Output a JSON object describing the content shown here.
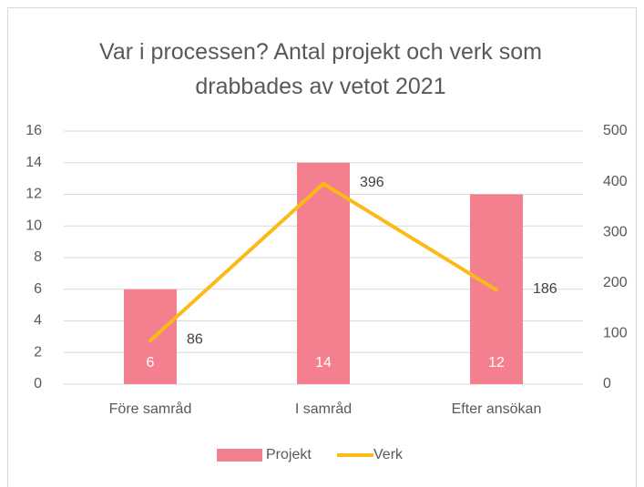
{
  "chart_data": {
    "type": "combo",
    "title": "Var i processen? Antal projekt och verk som drabbades av vetot 2021",
    "categories": [
      "Före samråd",
      "I samråd",
      "Efter ansökan"
    ],
    "series": [
      {
        "name": "Projekt",
        "type": "bar",
        "color": "#f4808f",
        "values": [
          6,
          14,
          12
        ]
      },
      {
        "name": "Verk",
        "type": "line",
        "color": "#fbba18",
        "axis": "y2",
        "values": [
          86,
          396,
          186
        ]
      }
    ],
    "ylim": [
      0,
      16
    ],
    "yticks": [
      0,
      2,
      4,
      6,
      8,
      10,
      12,
      14,
      16
    ],
    "y2lim": [
      0,
      500
    ],
    "y2ticks": [
      0,
      100,
      200,
      300,
      400,
      500
    ],
    "grid": true,
    "legend": "bottom"
  }
}
